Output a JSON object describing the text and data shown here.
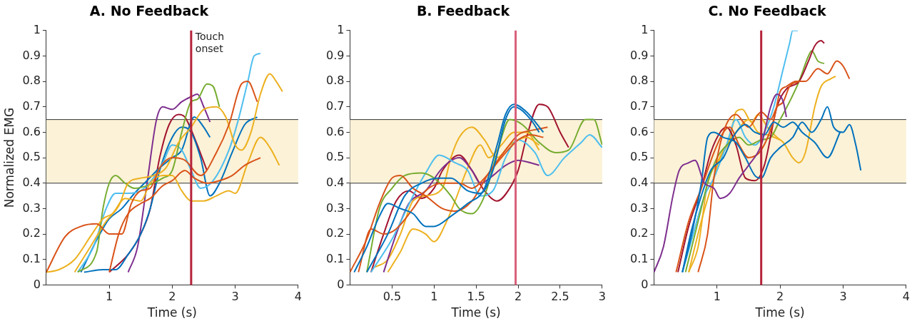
{
  "chart_data": [
    {
      "type": "line",
      "title": "A. No Feedback",
      "xlabel": "Time (s)",
      "ylabel": "Normalized EMG",
      "xlim": [
        0,
        4
      ],
      "xticks": [
        1,
        2,
        3,
        4
      ],
      "ylim": [
        0,
        1
      ],
      "yticks": [
        0,
        0.1,
        0.2,
        0.3,
        0.4,
        0.5,
        0.6,
        0.7,
        0.8,
        0.9,
        1
      ],
      "bands": [
        {
          "axis": "y",
          "from": 0.4,
          "to": 0.65,
          "color": "#fcf2d8"
        }
      ],
      "ref_lines": [
        {
          "axis": "x",
          "value": 2.3,
          "color": "#b5243a"
        }
      ],
      "annotations": [
        {
          "text": "Touch onset",
          "x": 2.3,
          "y": 0.95
        }
      ],
      "series": [
        {
          "color": "#d95319",
          "x": [
            0,
            0.3,
            0.55,
            0.8,
            1,
            1.2,
            1.35,
            1.5,
            1.65,
            1.8,
            2,
            2.2,
            2.45,
            2.7,
            2.9,
            3.1,
            3.2,
            3.35
          ],
          "values": [
            0.05,
            0.19,
            0.23,
            0.24,
            0.2,
            0.2,
            0.32,
            0.37,
            0.38,
            0.46,
            0.5,
            0.49,
            0.43,
            0.52,
            0.63,
            0.79,
            0.8,
            0.72
          ]
        },
        {
          "color": "#d95319",
          "x": [
            1,
            1.15,
            1.3,
            1.5,
            1.65,
            1.85,
            2,
            2.2,
            2.35,
            2.55,
            2.75,
            2.95,
            3.15,
            3.4
          ],
          "values": [
            0.05,
            0.2,
            0.28,
            0.32,
            0.34,
            0.39,
            0.41,
            0.45,
            0.42,
            0.4,
            0.41,
            0.43,
            0.47,
            0.5
          ]
        },
        {
          "color": "#edb120",
          "x": [
            0,
            0.2,
            0.45,
            0.7,
            0.9,
            1.05,
            1.25,
            1.5,
            1.65,
            1.85,
            2,
            2.15,
            2.3,
            2.5,
            2.7,
            2.9,
            3,
            3.2,
            3.4,
            3.55,
            3.7
          ],
          "values": [
            0.05,
            0.06,
            0.1,
            0.19,
            0.26,
            0.28,
            0.34,
            0.33,
            0.4,
            0.43,
            0.43,
            0.37,
            0.33,
            0.33,
            0.35,
            0.37,
            0.36,
            0.48,
            0.58,
            0.54,
            0.47
          ]
        },
        {
          "color": "#edb120",
          "x": [
            0.45,
            0.7,
            0.95,
            1.15,
            1.3,
            1.5,
            1.7,
            1.9,
            2.1,
            2.3,
            2.5,
            2.7,
            2.85,
            3,
            3.1,
            3.25,
            3.4,
            3.55,
            3.65,
            3.75
          ],
          "values": [
            0.05,
            0.15,
            0.25,
            0.31,
            0.4,
            0.42,
            0.43,
            0.46,
            0.56,
            0.62,
            0.69,
            0.7,
            0.66,
            0.55,
            0.53,
            0.6,
            0.75,
            0.83,
            0.8,
            0.76
          ]
        },
        {
          "color": "#77ac30",
          "x": [
            0.5,
            0.8,
            0.9,
            1,
            1.1,
            1.25,
            1.4,
            1.6,
            1.85,
            2,
            2.15,
            2.3,
            2.4,
            2.55,
            2.65,
            2.75
          ],
          "values": [
            0.05,
            0.13,
            0.3,
            0.4,
            0.43,
            0.4,
            0.38,
            0.39,
            0.42,
            0.45,
            0.6,
            0.72,
            0.73,
            0.79,
            0.78,
            0.7
          ]
        },
        {
          "color": "#4dbeee",
          "x": [
            0.5,
            0.75,
            0.95,
            1.1,
            1.3,
            1.5,
            1.7,
            1.85,
            2,
            2.15,
            2.3,
            2.45,
            2.65,
            2.9,
            3.05,
            3.2,
            3.3,
            3.4
          ],
          "values": [
            0.05,
            0.15,
            0.3,
            0.36,
            0.36,
            0.37,
            0.42,
            0.48,
            0.55,
            0.53,
            0.45,
            0.38,
            0.41,
            0.53,
            0.65,
            0.8,
            0.9,
            0.91
          ]
        },
        {
          "color": "#0072bd",
          "x": [
            0.6,
            0.9,
            1.1,
            1.3,
            1.5,
            1.65,
            1.8,
            2,
            2.15,
            2.3,
            2.45,
            2.6,
            2.75,
            2.95,
            3.15,
            3.35
          ],
          "values": [
            0.05,
            0.06,
            0.06,
            0.12,
            0.2,
            0.3,
            0.45,
            0.58,
            0.62,
            0.6,
            0.5,
            0.35,
            0.4,
            0.52,
            0.63,
            0.66
          ]
        },
        {
          "color": "#0072bd",
          "x": [
            0.55,
            0.85,
            1,
            1.2,
            1.4,
            1.6,
            1.8,
            2,
            2.15,
            2.35,
            2.5,
            2.6
          ],
          "values": [
            0.05,
            0.2,
            0.26,
            0.3,
            0.36,
            0.41,
            0.46,
            0.5,
            0.53,
            0.66,
            0.62,
            0.58
          ]
        },
        {
          "color": "#a2142f",
          "x": [
            1,
            1.3,
            1.5,
            1.65,
            1.8,
            1.95,
            2.1,
            2.2,
            2.35,
            2.55
          ],
          "values": [
            0.05,
            0.12,
            0.2,
            0.3,
            0.5,
            0.63,
            0.67,
            0.66,
            0.58,
            0.45
          ]
        },
        {
          "color": "#7e2f8e",
          "x": [
            1.3,
            1.45,
            1.6,
            1.75,
            1.85,
            2,
            2.15,
            2.3,
            2.4,
            2.5,
            2.6
          ],
          "values": [
            0.05,
            0.15,
            0.4,
            0.65,
            0.7,
            0.69,
            0.72,
            0.74,
            0.75,
            0.7,
            0.64
          ]
        }
      ]
    },
    {
      "type": "line",
      "title": "B. Feedback",
      "xlabel": "Time (s)",
      "xlim": [
        0,
        3
      ],
      "xticks": [
        0.5,
        1,
        1.5,
        2,
        2.5,
        3
      ],
      "ylim": [
        0,
        1
      ],
      "yticks": [
        0,
        0.1,
        0.2,
        0.3,
        0.4,
        0.5,
        0.6,
        0.7,
        0.8,
        0.9,
        1
      ],
      "bands": [
        {
          "axis": "y",
          "from": 0.4,
          "to": 0.65,
          "color": "#fcf2d8"
        }
      ],
      "ref_lines": [
        {
          "axis": "x",
          "value": 1.97,
          "color": "#d9607a"
        }
      ],
      "series": [
        {
          "color": "#0072bd",
          "x": [
            0.05,
            0.2,
            0.35,
            0.45,
            0.6,
            0.75,
            0.9,
            1,
            1.2,
            1.4,
            1.6,
            1.75,
            1.85,
            1.95,
            2.1,
            2.3
          ],
          "values": [
            0.05,
            0.15,
            0.27,
            0.32,
            0.3,
            0.28,
            0.23,
            0.23,
            0.27,
            0.32,
            0.38,
            0.55,
            0.67,
            0.71,
            0.68,
            0.6
          ]
        },
        {
          "color": "#0072bd",
          "x": [
            0.2,
            0.45,
            0.65,
            0.85,
            1.05,
            1.2,
            1.4,
            1.55,
            1.7,
            1.85,
            1.95,
            2.15,
            2.25
          ],
          "values": [
            0.05,
            0.2,
            0.35,
            0.4,
            0.42,
            0.42,
            0.37,
            0.36,
            0.45,
            0.65,
            0.7,
            0.65,
            0.6
          ]
        },
        {
          "color": "#d95319",
          "x": [
            0,
            0.2,
            0.35,
            0.5,
            0.6,
            0.75,
            0.9,
            1.1,
            1.25,
            1.45,
            1.65,
            1.85,
            2,
            2.2,
            2.35
          ],
          "values": [
            0.05,
            0.18,
            0.32,
            0.42,
            0.43,
            0.38,
            0.35,
            0.3,
            0.29,
            0.33,
            0.44,
            0.53,
            0.59,
            0.61,
            0.62
          ]
        },
        {
          "color": "#d95319",
          "x": [
            0.1,
            0.25,
            0.4,
            0.55,
            0.75,
            0.9,
            1.1,
            1.3,
            1.45,
            1.6,
            1.8,
            2,
            2.15,
            2.3
          ],
          "values": [
            0.05,
            0.22,
            0.2,
            0.22,
            0.3,
            0.37,
            0.4,
            0.4,
            0.38,
            0.42,
            0.5,
            0.57,
            0.59,
            0.58
          ]
        },
        {
          "color": "#77ac30",
          "x": [
            0.2,
            0.35,
            0.5,
            0.65,
            0.85,
            1,
            1.2,
            1.3,
            1.45,
            1.6,
            1.75,
            1.9,
            2.05,
            2.25,
            2.45,
            2.6,
            2.8,
            2.9,
            3
          ],
          "values": [
            0.05,
            0.3,
            0.38,
            0.43,
            0.44,
            0.42,
            0.35,
            0.3,
            0.28,
            0.35,
            0.52,
            0.65,
            0.63,
            0.56,
            0.52,
            0.53,
            0.65,
            0.65,
            0.55
          ]
        },
        {
          "color": "#4dbeee",
          "x": [
            0.25,
            0.5,
            0.75,
            0.9,
            1.06,
            1.25,
            1.4,
            1.55,
            1.7,
            1.85,
            2,
            2.2,
            2.35,
            2.55,
            2.75,
            2.85,
            3
          ],
          "values": [
            0.05,
            0.18,
            0.35,
            0.44,
            0.51,
            0.48,
            0.45,
            0.35,
            0.37,
            0.5,
            0.57,
            0.52,
            0.43,
            0.5,
            0.56,
            0.59,
            0.54
          ]
        },
        {
          "color": "#7e2f8e",
          "x": [
            0.4,
            0.55,
            0.7,
            0.9,
            1.1,
            1.3,
            1.45,
            1.55,
            1.7,
            1.85,
            2,
            2.15,
            2.25
          ],
          "values": [
            0.05,
            0.2,
            0.32,
            0.37,
            0.46,
            0.5,
            0.45,
            0.4,
            0.43,
            0.47,
            0.49,
            0.48,
            0.47
          ]
        },
        {
          "color": "#edb120",
          "x": [
            0.45,
            0.6,
            0.75,
            0.9,
            1,
            1.15,
            1.25,
            1.4,
            1.55,
            1.65,
            1.8,
            1.95,
            2.1,
            2.25
          ],
          "values": [
            0.05,
            0.13,
            0.22,
            0.2,
            0.17,
            0.25,
            0.33,
            0.46,
            0.55,
            0.5,
            0.55,
            0.6,
            0.6,
            0.53
          ]
        },
        {
          "color": "#edb120",
          "x": [
            0.3,
            0.45,
            0.6,
            0.75,
            0.9,
            1.1,
            1.2,
            1.3,
            1.45,
            1.6,
            1.75,
            1.9,
            2.1,
            2.25
          ],
          "values": [
            0.07,
            0.1,
            0.2,
            0.33,
            0.35,
            0.38,
            0.5,
            0.58,
            0.62,
            0.57,
            0.5,
            0.55,
            0.58,
            0.55
          ]
        },
        {
          "color": "#a2142f",
          "x": [
            0.25,
            0.4,
            0.55,
            0.7,
            0.85,
            1,
            1.1,
            1.3,
            1.45,
            1.6,
            1.75,
            1.9,
            2,
            2.1,
            2.25,
            2.35,
            2.5,
            2.6
          ],
          "values": [
            0.05,
            0.2,
            0.33,
            0.37,
            0.34,
            0.38,
            0.45,
            0.51,
            0.45,
            0.37,
            0.33,
            0.38,
            0.45,
            0.58,
            0.71,
            0.7,
            0.6,
            0.54
          ]
        }
      ]
    },
    {
      "type": "line",
      "title": "C. No Feedback",
      "xlabel": "Time (s)",
      "xlim": [
        0,
        4
      ],
      "xticks": [
        1,
        2,
        3,
        4
      ],
      "ylim": [
        0,
        1
      ],
      "yticks": [
        0,
        0.1,
        0.2,
        0.3,
        0.4,
        0.5,
        0.6,
        0.7,
        0.8,
        0.9,
        1
      ],
      "bands": [
        {
          "axis": "y",
          "from": 0.4,
          "to": 0.65,
          "color": "#fcf2d8"
        }
      ],
      "ref_lines": [
        {
          "axis": "x",
          "value": 1.7,
          "color": "#b5243a"
        }
      ],
      "series": [
        {
          "color": "#7e2f8e",
          "x": [
            0,
            0.15,
            0.3,
            0.4,
            0.55,
            0.65,
            0.8,
            0.95,
            1.05,
            1.2,
            1.35,
            1.5,
            1.7,
            1.85,
            1.95,
            2.05,
            2.1
          ],
          "values": [
            0.05,
            0.15,
            0.35,
            0.45,
            0.48,
            0.49,
            0.4,
            0.38,
            0.34,
            0.36,
            0.42,
            0.47,
            0.55,
            0.7,
            0.75,
            0.72,
            0.66
          ]
        },
        {
          "color": "#0072bd",
          "x": [
            0.45,
            0.6,
            0.75,
            0.85,
            0.95,
            1.1,
            1.3,
            1.45,
            1.6,
            1.7,
            1.85,
            2,
            2.2,
            2.35,
            2.5,
            2.65,
            2.75,
            2.85,
            3,
            3.1,
            3.2,
            3.28
          ],
          "values": [
            0.05,
            0.2,
            0.4,
            0.58,
            0.6,
            0.58,
            0.56,
            0.5,
            0.43,
            0.42,
            0.5,
            0.54,
            0.58,
            0.64,
            0.6,
            0.65,
            0.7,
            0.62,
            0.6,
            0.63,
            0.55,
            0.45
          ]
        },
        {
          "color": "#0072bd",
          "x": [
            0.45,
            0.6,
            0.75,
            0.9,
            1.1,
            1.25,
            1.45,
            1.6,
            1.75,
            1.9,
            2.05,
            2.2,
            2.35,
            2.55,
            2.75,
            2.95
          ],
          "values": [
            0.05,
            0.22,
            0.35,
            0.45,
            0.5,
            0.58,
            0.63,
            0.6,
            0.59,
            0.64,
            0.62,
            0.64,
            0.6,
            0.56,
            0.5,
            0.6
          ]
        },
        {
          "color": "#d95319",
          "x": [
            0.35,
            0.55,
            0.75,
            0.95,
            1.1,
            1.2,
            1.35,
            1.5,
            1.7,
            1.9,
            2,
            2.1,
            2.25,
            2.4,
            2.6,
            2.75,
            2.9,
            3,
            3.1
          ],
          "values": [
            0.05,
            0.25,
            0.38,
            0.52,
            0.6,
            0.62,
            0.55,
            0.5,
            0.53,
            0.65,
            0.76,
            0.78,
            0.8,
            0.8,
            0.85,
            0.83,
            0.88,
            0.86,
            0.81
          ]
        },
        {
          "color": "#d95319",
          "x": [
            0.7,
            0.85,
            0.95,
            1.1,
            1.3,
            1.5,
            1.7,
            1.85,
            1.95,
            2.05,
            2.15,
            2.3
          ],
          "values": [
            0.05,
            0.2,
            0.42,
            0.6,
            0.67,
            0.62,
            0.68,
            0.65,
            0.7,
            0.72,
            0.78,
            0.8
          ]
        },
        {
          "color": "#a2142f",
          "x": [
            0.38,
            0.55,
            0.75,
            0.9,
            1.05,
            1.15,
            1.3,
            1.45,
            1.6,
            1.75,
            1.95,
            2.1,
            2.3,
            2.45,
            2.55,
            2.65,
            2.7
          ],
          "values": [
            0.05,
            0.23,
            0.38,
            0.52,
            0.6,
            0.62,
            0.55,
            0.42,
            0.41,
            0.47,
            0.7,
            0.77,
            0.8,
            0.88,
            0.94,
            0.96,
            0.95
          ]
        },
        {
          "color": "#77ac30",
          "x": [
            0.5,
            0.7,
            0.85,
            1,
            1.2,
            1.35,
            1.5,
            1.7,
            1.85,
            2,
            2.15,
            2.3,
            2.45,
            2.5,
            2.6,
            2.7
          ],
          "values": [
            0.05,
            0.25,
            0.4,
            0.5,
            0.56,
            0.58,
            0.55,
            0.57,
            0.58,
            0.65,
            0.72,
            0.8,
            0.9,
            0.92,
            0.88,
            0.87
          ]
        },
        {
          "color": "#4dbeee",
          "x": [
            0.45,
            0.6,
            0.8,
            0.95,
            1.15,
            1.3,
            1.45,
            1.6,
            1.75,
            1.9,
            2.05,
            2.15,
            2.2,
            2.28
          ],
          "values": [
            0.05,
            0.18,
            0.35,
            0.42,
            0.55,
            0.65,
            0.58,
            0.55,
            0.6,
            0.7,
            0.85,
            0.95,
            1,
            1
          ]
        },
        {
          "color": "#edb120",
          "x": [
            0.55,
            0.75,
            0.9,
            1.05,
            1.2,
            1.3,
            1.4,
            1.55,
            1.65,
            1.8,
            1.95,
            2.05,
            2.2,
            2.3,
            2.4,
            2.55,
            2.65,
            2.8,
            2.88
          ],
          "values": [
            0.05,
            0.25,
            0.38,
            0.5,
            0.57,
            0.68,
            0.69,
            0.64,
            0.67,
            0.62,
            0.58,
            0.56,
            0.5,
            0.48,
            0.52,
            0.7,
            0.78,
            0.81,
            0.82
          ]
        },
        {
          "color": "#edb120",
          "x": [
            0.55,
            0.7,
            0.85,
            1,
            1.15,
            1.3,
            1.5,
            1.65,
            1.8,
            2
          ],
          "values": [
            0.05,
            0.15,
            0.4,
            0.48,
            0.55,
            0.6,
            0.65,
            0.6,
            0.59,
            0.57
          ]
        }
      ]
    }
  ]
}
